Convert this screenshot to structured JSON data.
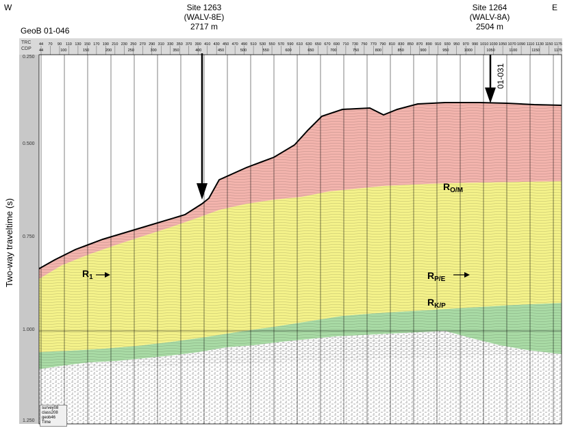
{
  "directions": {
    "west": "W",
    "east": "E"
  },
  "line_id": "GeoB 01-046",
  "site_1263": {
    "name": "Site 1263",
    "well": "(WALV-8E)",
    "depth": "2717 m"
  },
  "site_1264": {
    "name": "Site 1264",
    "well": "(WALV-8A)",
    "depth": "2504 m"
  },
  "crossing_line": "01-031",
  "y_axis": {
    "label": "Two-way traveltime (s)",
    "ticks": [
      "0.250",
      "0.500",
      "0.750",
      "1.000",
      "1.250"
    ]
  },
  "header_rows": {
    "trc_label": "TRC",
    "cdp_label": "CDP",
    "trc_values": [
      "44",
      "70",
      "90",
      "110",
      "130",
      "150",
      "170",
      "190",
      "210",
      "230",
      "250",
      "270",
      "290",
      "310",
      "330",
      "350",
      "370",
      "390",
      "410",
      "430",
      "450",
      "470",
      "490",
      "510",
      "530",
      "550",
      "570",
      "590",
      "610",
      "630",
      "650",
      "670",
      "690",
      "710",
      "730",
      "750",
      "770",
      "790",
      "810",
      "830",
      "850",
      "870",
      "890",
      "910",
      "930",
      "950",
      "970",
      "990",
      "1010",
      "1030",
      "1050",
      "1070",
      "1090",
      "1110",
      "1130",
      "1150",
      "1175"
    ],
    "cdp_values": [
      "44",
      "100",
      "150",
      "200",
      "250",
      "300",
      "350",
      "400",
      "450",
      "500",
      "550",
      "600",
      "650",
      "700",
      "750",
      "800",
      "850",
      "900",
      "950",
      "1000",
      "1050",
      "1100",
      "1150",
      "1175"
    ]
  },
  "reflectors": {
    "r1": {
      "base": "R",
      "sub": "1"
    },
    "rom": {
      "base": "R",
      "sub": "O/M"
    },
    "rpe": {
      "base": "R",
      "sub": "P/E"
    },
    "rkp": {
      "base": "R",
      "sub": "K/P"
    }
  },
  "corner_legend": [
    "survey08",
    "class208",
    "geob46",
    "Time"
  ],
  "colors": {
    "upper_unit": "#f3b4ad",
    "middle_unit": "#f4f28a",
    "lower_unit": "#a9dba5",
    "seismic_noise": "#bfbfbf",
    "header_bar": "#d9d9d9"
  }
}
